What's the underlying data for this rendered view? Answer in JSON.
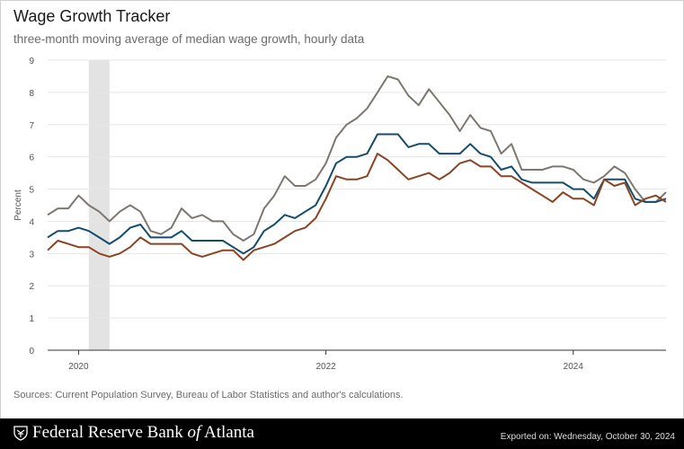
{
  "header": {
    "title": "Wage Growth Tracker",
    "subtitle": "three-month moving average of median wage growth, hourly data"
  },
  "footer": {
    "source": "Sources: Current Population Survey, Bureau of Labor Statistics and author's calculations.",
    "brand_pre": "Federal Reserve Bank ",
    "brand_of": "of",
    "brand_post": " Atlanta",
    "export_label": "Exported on: Wednesday, October 30, 2024"
  },
  "colors": {
    "gray_series": "#7d7770",
    "blue_series": "#154c6b",
    "brown_series": "#8a4323",
    "recession": "#e3e3e3",
    "grid": "#e6e6e6",
    "axis": "#333333",
    "text": "#555555"
  },
  "chart_data": {
    "type": "line",
    "title": "Wage Growth Tracker",
    "subtitle": "three-month moving average of median wage growth, hourly data",
    "xlabel": "",
    "ylabel": "Percent",
    "xlim": [
      2019.75,
      2024.75
    ],
    "ylim": [
      0,
      9
    ],
    "yticks": [
      0,
      1,
      2,
      3,
      4,
      5,
      6,
      7,
      8,
      9
    ],
    "xticks": [
      2020,
      2022,
      2024
    ],
    "grid": "horizontal",
    "legend": "none",
    "shaded_periods": [
      [
        2020.083,
        2020.25
      ]
    ],
    "x": [
      2019.75,
      2019.833,
      2019.917,
      2020.0,
      2020.083,
      2020.167,
      2020.25,
      2020.333,
      2020.417,
      2020.5,
      2020.583,
      2020.667,
      2020.75,
      2020.833,
      2020.917,
      2021.0,
      2021.083,
      2021.167,
      2021.25,
      2021.333,
      2021.417,
      2021.5,
      2021.583,
      2021.667,
      2021.75,
      2021.833,
      2021.917,
      2022.0,
      2022.083,
      2022.167,
      2022.25,
      2022.333,
      2022.417,
      2022.5,
      2022.583,
      2022.667,
      2022.75,
      2022.833,
      2022.917,
      2023.0,
      2023.083,
      2023.167,
      2023.25,
      2023.333,
      2023.417,
      2023.5,
      2023.583,
      2023.667,
      2023.75,
      2023.833,
      2023.917,
      2024.0,
      2024.083,
      2024.167,
      2024.25,
      2024.333,
      2024.417,
      2024.5,
      2024.583,
      2024.667,
      2024.75
    ],
    "series": [
      {
        "values": [
          4.2,
          4.4,
          4.4,
          4.8,
          4.5,
          4.3,
          4.0,
          4.3,
          4.5,
          4.3,
          3.7,
          3.6,
          3.8,
          4.4,
          4.1,
          4.2,
          4.0,
          4.0,
          3.6,
          3.4,
          3.6,
          4.4,
          4.8,
          5.4,
          5.1,
          5.1,
          5.3,
          5.8,
          6.6,
          7.0,
          7.2,
          7.5,
          8.0,
          8.5,
          8.4,
          7.9,
          7.6,
          8.1,
          7.7,
          7.3,
          6.8,
          7.3,
          6.9,
          6.8,
          6.1,
          6.4,
          5.6,
          5.6,
          5.6,
          5.7,
          5.7,
          5.6,
          5.3,
          5.2,
          5.4,
          5.7,
          5.5,
          5.0,
          4.6,
          4.6,
          4.9
        ]
      },
      {
        "values": [
          3.5,
          3.7,
          3.7,
          3.8,
          3.7,
          3.5,
          3.3,
          3.5,
          3.8,
          3.9,
          3.5,
          3.5,
          3.5,
          3.7,
          3.4,
          3.4,
          3.4,
          3.4,
          3.2,
          3.0,
          3.2,
          3.7,
          3.9,
          4.2,
          4.1,
          4.3,
          4.5,
          5.1,
          5.8,
          6.0,
          6.0,
          6.1,
          6.7,
          6.7,
          6.7,
          6.3,
          6.4,
          6.4,
          6.1,
          6.1,
          6.1,
          6.4,
          6.1,
          6.0,
          5.6,
          5.7,
          5.3,
          5.2,
          5.2,
          5.2,
          5.2,
          5.0,
          5.0,
          4.7,
          5.3,
          5.3,
          5.3,
          4.7,
          4.6,
          4.6,
          4.7
        ]
      },
      {
        "values": [
          3.1,
          3.4,
          3.3,
          3.2,
          3.2,
          3.0,
          2.9,
          3.0,
          3.2,
          3.5,
          3.3,
          3.3,
          3.3,
          3.3,
          3.0,
          2.9,
          3.0,
          3.1,
          3.1,
          2.8,
          3.1,
          3.2,
          3.3,
          3.5,
          3.7,
          3.8,
          4.1,
          4.7,
          5.4,
          5.3,
          5.3,
          5.4,
          6.1,
          5.9,
          5.6,
          5.3,
          5.4,
          5.5,
          5.3,
          5.5,
          5.8,
          5.9,
          5.7,
          5.7,
          5.4,
          5.4,
          5.2,
          5.0,
          4.8,
          4.6,
          4.9,
          4.7,
          4.7,
          4.5,
          5.3,
          5.1,
          5.2,
          4.5,
          4.7,
          4.8,
          4.6
        ]
      }
    ]
  }
}
